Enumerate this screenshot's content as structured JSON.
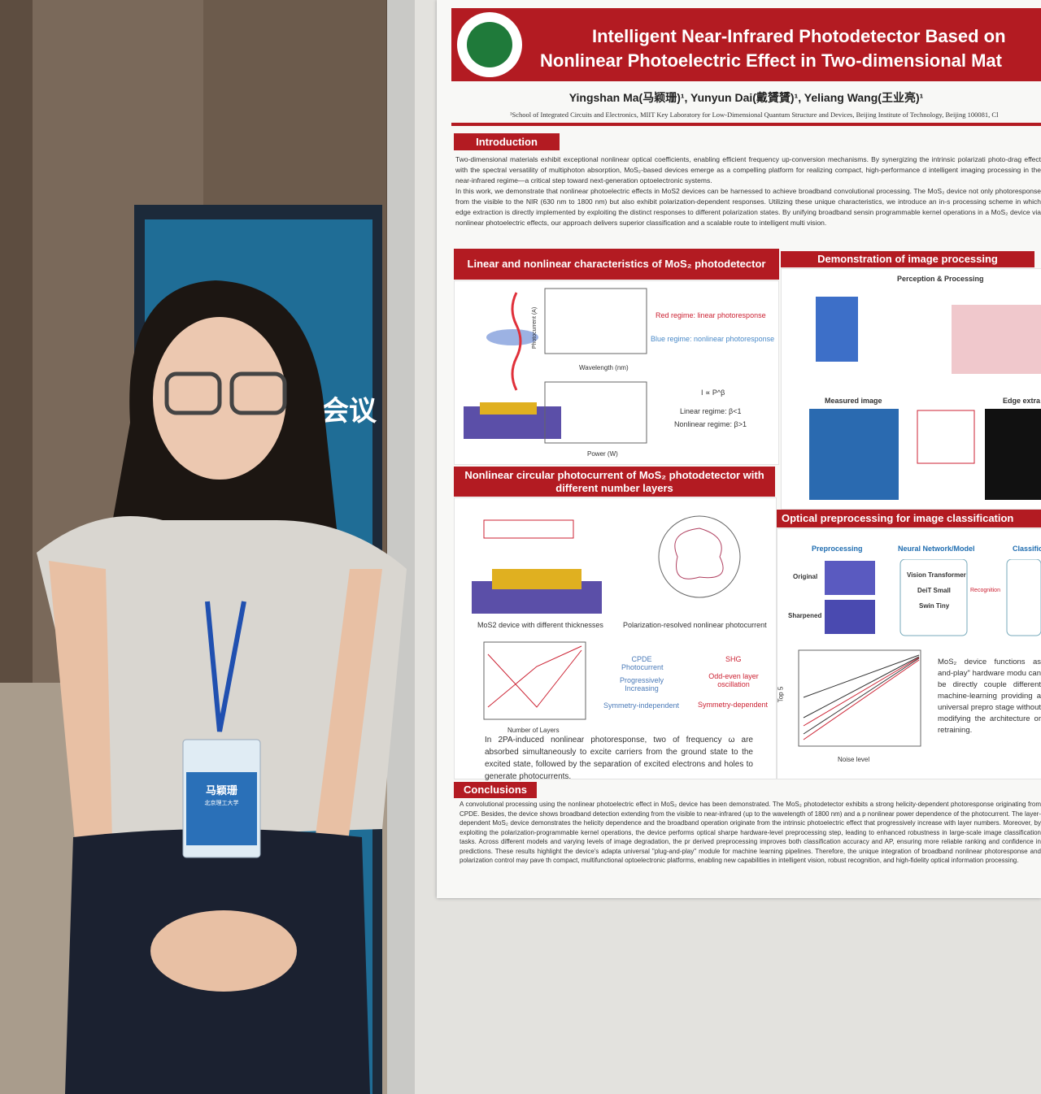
{
  "standee": {
    "text": "会议"
  },
  "badge": {
    "name": "马颖珊",
    "affiliation": "北京理工大学"
  },
  "poster": {
    "title": [
      "Intelligent Near-Infrared Photodetector Based on",
      "Nonlinear Photoelectric Effect in Two-dimensional Mat"
    ],
    "authors": "Yingshan Ma(马颖珊)¹, Yunyun Dai(戴贇贇)¹, Yeliang Wang(王业亮)¹",
    "affiliation": "¹School of Integrated Circuits and Electronics, MIIT Key Laboratory for Low-Dimensional Quantum Structure and Devices, Beijing Institute of Technology, Beijing 100081, Cl",
    "introduction": {
      "heading": "Introduction",
      "paragraphs": [
        "Two-dimensional materials exhibit exceptional nonlinear optical coefficients, enabling efficient frequency up-conversion mechanisms. By synergizing the intrinsic polarizati photo-drag effect with the spectral versatility of multiphoton absorption, MoS₂-based devices emerge as a compelling platform for realizing compact, high-performance d intelligent imaging processing in the near-infrared regime—a critical step toward next-generation optoelectronic systems.",
        "In this work, we demonstrate that nonlinear photoelectric effects in MoS2 devices can be harnessed to achieve broadband convolutional processing. The MoS₂ device not only photoresponse from the visible to the NIR (630 nm to 1800 nm) but also exhibit polarization-dependent responses. Utilizing these unique characteristics, we introduce an in-s processing scheme in which edge extraction is directly implemented by exploiting the distinct responses to different polarization states. By unifying broadband sensin programmable kernel operations in a MoS₂ device via nonlinear photoelectric effects, our approach delivers superior classification and a scalable route to intelligent multi vision."
      ]
    },
    "linear_section": {
      "heading": "Linear and nonlinear characteristics of MoS₂ photodetector",
      "labels": [
        "Red regime: linear photoresponse",
        "Blue regime: nonlinear photoresponse",
        "I ∝ P^β",
        "Linear regime: β<1",
        "Nonlinear regime: β>1",
        "Wavelength (nm)",
        "Power (W)",
        "Photocurrent (A)"
      ]
    },
    "demo_section": {
      "heading": "Demonstration of image processing",
      "labels": [
        "Perception & Processing",
        "Measured image",
        "Edge extra"
      ]
    },
    "circular_section": {
      "heading": "Nonlinear circular photocurrent of MoS₂ photodetector with different number layers",
      "labels": [
        "MoS2 device with different thicknesses",
        "Polarization-resolved nonlinear photocurrent",
        "CPDE Photocurrent",
        "Progressively Increasing",
        "Symmetry-independent",
        "SHG",
        "Odd-even layer oscillation",
        "Symmetry-dependent",
        "Number of Layers"
      ],
      "text": "In 2PA-induced nonlinear photoresponse, two of frequency ω are absorbed simultaneously to excite carriers from the ground state to the excited state, followed by the separation of excited electrons and holes to generate photocurrents."
    },
    "classification_section": {
      "heading": "Optical preprocessing for image classification",
      "stages": [
        "Preprocessing",
        "Neural Network/Model",
        "Classific"
      ],
      "images": [
        "Original",
        "Sharpened"
      ],
      "models": [
        "Vision Transformer",
        "DeiT Small",
        "Swin Tiny"
      ],
      "arrow_label": "Recognition",
      "axis_labels": [
        "Top 5",
        "Noise level"
      ],
      "text": "MoS₂ device functions as and-play\" hardware modu can be directly couple different machine-learning providing a universal prepro stage without modifying the architecture or retraining."
    },
    "conclusions": {
      "heading": "Conclusions",
      "text": "A convolutional processing using the nonlinear photoelectric effect in MoS₂ device has been demonstrated. The MoS₂ photodetector exhibits a strong helicity-dependent photoresponse originating from CPDE. Besides, the device shows broadband detection extending from the visible to near-infrared (up to the wavelength of 1800 nm) and a p nonlinear power dependence of the photocurrent. The layer-dependent MoS₂ device demonstrates the helicity dependence and the broadband operation originate from the intrinsic photoelectric effect that progressively increase with layer numbers. Moreover, by exploiting the polarization-programmable kernel operations, the device performs optical sharpe hardware-level preprocessing step, leading to enhanced robustness in large-scale image classification tasks. Across different models and varying levels of image degradation, the pr derived preprocessing improves both classification accuracy and AP, ensuring more reliable ranking and confidence in predictions. These results highlight the device's adapta universal \"plug-and-play\" module for machine learning pipelines. Therefore, the unique integration of broadband nonlinear photoresponse and polarization control may pave th compact, multifunctional optoelectronic platforms, enabling new capabilities in intelligent vision, robust recognition, and high-fidelity optical information processing."
    }
  }
}
